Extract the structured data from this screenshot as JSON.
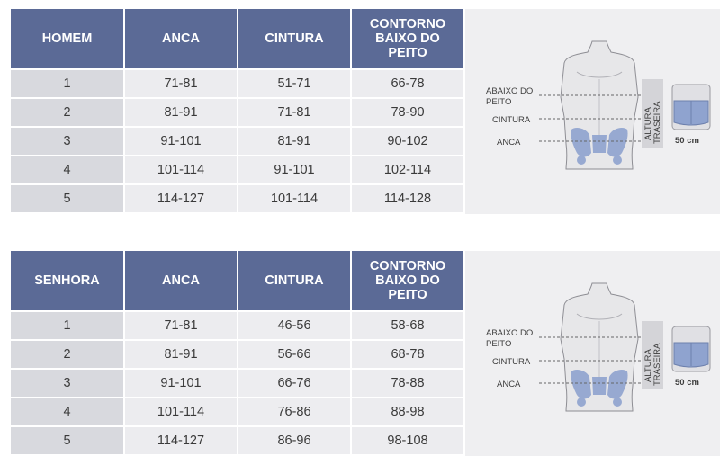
{
  "men": {
    "headers": [
      "HOMEM",
      "ANCA",
      "CINTURA",
      "CONTORNO\nBAIXO DO\nPEITO"
    ],
    "rows": [
      [
        "1",
        "71-81",
        "51-71",
        "66-78"
      ],
      [
        "2",
        "81-91",
        "71-81",
        "78-90"
      ],
      [
        "3",
        "91-101",
        "81-91",
        "90-102"
      ],
      [
        "4",
        "101-114",
        "91-101",
        "102-114"
      ],
      [
        "5",
        "114-127",
        "101-114",
        "114-128"
      ]
    ],
    "figure": {
      "label_chest_1": "ABAIXO DO",
      "label_chest_2": "PEITO",
      "label_waist": "CINTURA",
      "label_hip": "ANCA",
      "back_height_1": "ALTURA",
      "back_height_2": "TRASEIRA",
      "belt_height": "50 cm"
    }
  },
  "women": {
    "headers": [
      "SENHORA",
      "ANCA",
      "CINTURA",
      "CONTORNO\nBAIXO DO\nPEITO"
    ],
    "rows": [
      [
        "1",
        "71-81",
        "46-56",
        "58-68"
      ],
      [
        "2",
        "81-91",
        "56-66",
        "68-78"
      ],
      [
        "3",
        "91-101",
        "66-76",
        "78-88"
      ],
      [
        "4",
        "101-114",
        "76-86",
        "88-98"
      ],
      [
        "5",
        "114-127",
        "86-96",
        "98-108"
      ]
    ],
    "figure": {
      "label_chest_1": "ABAIXO DO",
      "label_chest_2": "PEITO",
      "label_waist": "CINTURA",
      "label_hip": "ANCA",
      "back_height_1": "ALTURA",
      "back_height_2": "TRASEIRA",
      "belt_height": "50 cm"
    }
  },
  "colors": {
    "header_bg": "#5b6a96",
    "first_col_bg": "#d8d9de",
    "cell_bg": "#ececef",
    "belt_blue": "#8fa3cf",
    "figure_bg": "#efeff1"
  }
}
